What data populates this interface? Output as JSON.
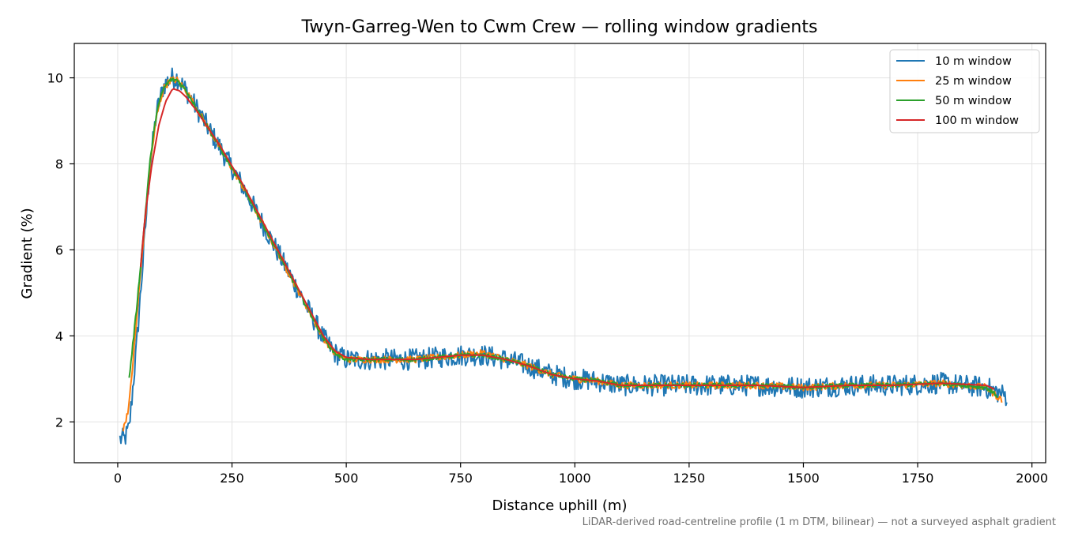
{
  "chart_data": {
    "type": "line",
    "title": "Twyn-Garreg-Wen to Cwm Crew — rolling window gradients",
    "xlabel": "Distance uphill (m)",
    "ylabel": "Gradient (%)",
    "xlim": [
      -95,
      2030
    ],
    "ylim": [
      1.05,
      10.8
    ],
    "xticks": [
      0,
      250,
      500,
      750,
      1000,
      1250,
      1500,
      1750,
      2000
    ],
    "yticks": [
      2,
      4,
      6,
      8,
      10
    ],
    "grid": true,
    "legend_position": "top-right",
    "footnote": "LiDAR-derived road-centreline profile (1 m DTM, bilinear) — not a surveyed asphalt gradient",
    "series": [
      {
        "name": "10 m window",
        "color": "#1f77b4",
        "noise": 0.25,
        "x": [
          5,
          15,
          25,
          40,
          55,
          70,
          85,
          100,
          115,
          130,
          150,
          175,
          200,
          225,
          250,
          275,
          300,
          325,
          350,
          375,
          400,
          425,
          450,
          475,
          500,
          550,
          600,
          650,
          700,
          750,
          800,
          850,
          900,
          950,
          1000,
          1050,
          1100,
          1200,
          1300,
          1400,
          1500,
          1600,
          1700,
          1800,
          1900,
          1945
        ],
        "y": [
          1.6,
          1.6,
          1.85,
          3.6,
          5.7,
          7.9,
          9.2,
          9.8,
          10.0,
          10.0,
          9.7,
          9.25,
          8.8,
          8.35,
          7.9,
          7.45,
          6.95,
          6.45,
          5.95,
          5.45,
          4.95,
          4.45,
          3.95,
          3.6,
          3.45,
          3.45,
          3.45,
          3.45,
          3.5,
          3.55,
          3.55,
          3.45,
          3.3,
          3.1,
          3.0,
          2.95,
          2.85,
          2.85,
          2.85,
          2.85,
          2.8,
          2.85,
          2.85,
          2.9,
          2.8,
          2.6
        ]
      },
      {
        "name": "25 m window",
        "color": "#ff7f0e",
        "noise": 0.08,
        "x": [
          12,
          25,
          40,
          55,
          70,
          85,
          100,
          115,
          130,
          150,
          175,
          200,
          225,
          250,
          275,
          300,
          325,
          350,
          375,
          400,
          425,
          450,
          475,
          500,
          550,
          600,
          650,
          700,
          750,
          800,
          850,
          900,
          950,
          1000,
          1050,
          1100,
          1200,
          1300,
          1400,
          1500,
          1600,
          1700,
          1800,
          1900,
          1935
        ],
        "y": [
          1.8,
          2.4,
          4.2,
          6.1,
          7.9,
          9.1,
          9.75,
          9.95,
          9.95,
          9.7,
          9.25,
          8.8,
          8.35,
          7.9,
          7.45,
          6.95,
          6.45,
          5.95,
          5.45,
          4.95,
          4.45,
          3.95,
          3.6,
          3.45,
          3.45,
          3.45,
          3.45,
          3.5,
          3.55,
          3.6,
          3.45,
          3.3,
          3.1,
          3.0,
          2.95,
          2.85,
          2.85,
          2.85,
          2.85,
          2.8,
          2.85,
          2.85,
          2.9,
          2.8,
          2.5
        ]
      },
      {
        "name": "50 m window",
        "color": "#2ca02c",
        "noise": 0.05,
        "x": [
          25,
          40,
          55,
          70,
          85,
          100,
          115,
          130,
          150,
          175,
          200,
          225,
          250,
          275,
          300,
          325,
          350,
          375,
          400,
          425,
          450,
          475,
          500,
          550,
          600,
          650,
          700,
          750,
          800,
          850,
          900,
          950,
          1000,
          1050,
          1100,
          1200,
          1300,
          1400,
          1500,
          1600,
          1700,
          1800,
          1900,
          1925
        ],
        "y": [
          3.0,
          4.5,
          6.2,
          8.0,
          9.2,
          9.75,
          9.95,
          9.95,
          9.7,
          9.25,
          8.8,
          8.35,
          7.9,
          7.45,
          6.95,
          6.45,
          5.95,
          5.45,
          4.95,
          4.45,
          3.95,
          3.6,
          3.45,
          3.45,
          3.45,
          3.45,
          3.5,
          3.55,
          3.55,
          3.45,
          3.3,
          3.1,
          3.0,
          2.95,
          2.85,
          2.85,
          2.85,
          2.85,
          2.8,
          2.85,
          2.85,
          2.9,
          2.8,
          2.6
        ]
      },
      {
        "name": "100 m window",
        "color": "#d62728",
        "noise": 0.0,
        "x": [
          50,
          60,
          75,
          90,
          105,
          120,
          135,
          150,
          175,
          200,
          225,
          250,
          275,
          300,
          325,
          350,
          375,
          400,
          425,
          450,
          475,
          500,
          550,
          600,
          650,
          700,
          750,
          800,
          850,
          900,
          950,
          1000,
          1050,
          1100,
          1200,
          1300,
          1400,
          1500,
          1600,
          1700,
          1800,
          1900,
          1920
        ],
        "y": [
          5.6,
          6.8,
          8.0,
          8.9,
          9.45,
          9.75,
          9.7,
          9.55,
          9.2,
          8.8,
          8.4,
          7.95,
          7.5,
          7.0,
          6.5,
          6.0,
          5.5,
          5.0,
          4.5,
          4.0,
          3.65,
          3.5,
          3.45,
          3.45,
          3.45,
          3.5,
          3.55,
          3.55,
          3.45,
          3.3,
          3.1,
          3.0,
          2.95,
          2.85,
          2.85,
          2.85,
          2.85,
          2.8,
          2.85,
          2.85,
          2.9,
          2.85,
          2.75
        ]
      }
    ]
  }
}
